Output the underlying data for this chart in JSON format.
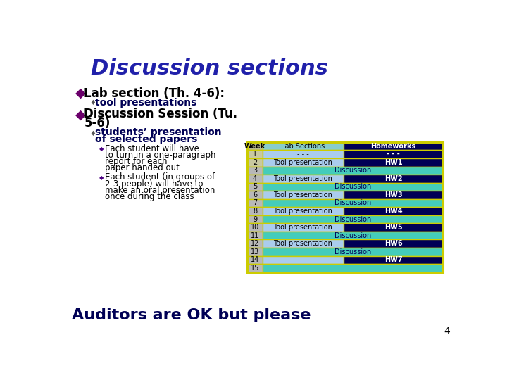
{
  "title": "Discussion sections",
  "title_color": "#2020aa",
  "bg_color": "#ffffff",
  "slide_number": "4",
  "bottom_text": "Auditors are OK but please",
  "table_header_week_bg": "#b8b890",
  "table_header_lab_bg": "#88cccc",
  "table_header_hw_bg": "#000055",
  "table_header_week_txt": "#000000",
  "table_header_lab_txt": "#000000",
  "table_header_hw_txt": "#ffffff",
  "table_week_gray_bg": "#b8b8b8",
  "table_week_light_bg": "#c8c8a0",
  "table_lab_light_bg": "#aaccee",
  "table_lab_cyan_bg": "#44ccbb",
  "table_hw_dark_bg": "#000055",
  "table_hw_txt": "#ffffff",
  "table_lab_txt": "#000000",
  "table_discussion_txt": "#000055",
  "table_border": "#cccc00",
  "rows": [
    {
      "week": "1",
      "lab": "- - -",
      "hw": "- - -",
      "type": "tool",
      "week_bg": "light"
    },
    {
      "week": "2",
      "lab": "Tool presentation",
      "hw": "HW1",
      "type": "tool",
      "week_bg": "light"
    },
    {
      "week": "3",
      "lab": "Discussion",
      "hw": "",
      "type": "disc",
      "week_bg": "gray"
    },
    {
      "week": "4",
      "lab": "Tool presentation",
      "hw": "HW2",
      "type": "tool",
      "week_bg": "gray"
    },
    {
      "week": "5",
      "lab": "Discussion",
      "hw": "",
      "type": "disc",
      "week_bg": "gray"
    },
    {
      "week": "6",
      "lab": "Tool presentation",
      "hw": "HW3",
      "type": "tool",
      "week_bg": "gray"
    },
    {
      "week": "7",
      "lab": "Discussion",
      "hw": "",
      "type": "disc",
      "week_bg": "gray"
    },
    {
      "week": "8",
      "lab": "Tool presentation",
      "hw": "HW4",
      "type": "tool",
      "week_bg": "gray"
    },
    {
      "week": "9",
      "lab": "Discussion",
      "hw": "",
      "type": "disc",
      "week_bg": "gray"
    },
    {
      "week": "10",
      "lab": "Tool presentation",
      "hw": "HW5",
      "type": "tool",
      "week_bg": "gray"
    },
    {
      "week": "11",
      "lab": "Discussion",
      "hw": "",
      "type": "disc",
      "week_bg": "gray"
    },
    {
      "week": "12",
      "lab": "Tool presentation",
      "hw": "HW6",
      "type": "tool",
      "week_bg": "gray"
    },
    {
      "week": "13",
      "lab": "Discussion",
      "hw": "",
      "type": "disc",
      "week_bg": "gray"
    },
    {
      "week": "14",
      "lab": "",
      "hw": "HW7",
      "type": "tool",
      "week_bg": "gray"
    },
    {
      "week": "15",
      "lab": "",
      "hw": "",
      "type": "disc",
      "week_bg": "gray"
    }
  ]
}
